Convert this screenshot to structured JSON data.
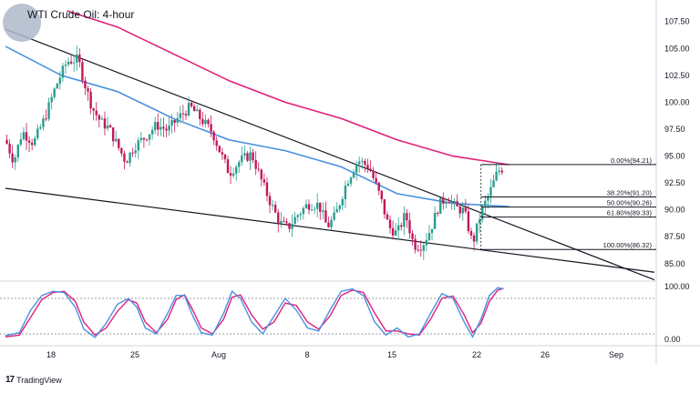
{
  "title": "WTI Crude Oil: 4-hour",
  "brand": "TradingView",
  "colors": {
    "up": "#2a9d8f",
    "down": "#c2185b",
    "ma_fast": "#4a90e2",
    "ma_slow": "#e0207a",
    "stoch_k": "#4a90e2",
    "stoch_d": "#e0207a",
    "trendline": "#131722"
  },
  "chart_data": {
    "type": "candlestick",
    "title": "WTI Crude Oil: 4-hour",
    "price_axis": {
      "ticks": [
        "107.50",
        "105.00",
        "102.50",
        "100.00",
        "97.50",
        "95.00",
        "92.50",
        "90.00",
        "87.50",
        "85.00"
      ],
      "range": [
        83.8,
        109.0
      ]
    },
    "x_ticks": [
      "18",
      "25",
      "Aug",
      "8",
      "15",
      "22",
      "26",
      "Sep"
    ],
    "candles_4h_close_approx": [
      {
        "t": 0,
        "c": 96.5
      },
      {
        "t": 3,
        "c": 94.5
      },
      {
        "t": 6,
        "c": 97.3
      },
      {
        "t": 10,
        "c": 96.2
      },
      {
        "t": 14,
        "c": 98.5
      },
      {
        "t": 18,
        "c": 101.5
      },
      {
        "t": 22,
        "c": 103.8
      },
      {
        "t": 26,
        "c": 104.0
      },
      {
        "t": 28,
        "c": 102.0
      },
      {
        "t": 31,
        "c": 99.5
      },
      {
        "t": 34,
        "c": 98.2
      },
      {
        "t": 37,
        "c": 97.6
      },
      {
        "t": 40,
        "c": 96.0
      },
      {
        "t": 43,
        "c": 94.5
      },
      {
        "t": 46,
        "c": 95.9
      },
      {
        "t": 50,
        "c": 96.8
      },
      {
        "t": 54,
        "c": 97.9
      },
      {
        "t": 58,
        "c": 97.4
      },
      {
        "t": 62,
        "c": 98.6
      },
      {
        "t": 66,
        "c": 99.6
      },
      {
        "t": 70,
        "c": 98.4
      },
      {
        "t": 74,
        "c": 97.2
      },
      {
        "t": 77,
        "c": 95.2
      },
      {
        "t": 80,
        "c": 93.4
      },
      {
        "t": 84,
        "c": 94.6
      },
      {
        "t": 88,
        "c": 95.2
      },
      {
        "t": 92,
        "c": 92.4
      },
      {
        "t": 95,
        "c": 90.5
      },
      {
        "t": 98,
        "c": 88.8
      },
      {
        "t": 101,
        "c": 88.3
      },
      {
        "t": 104,
        "c": 89.4
      },
      {
        "t": 108,
        "c": 90.5
      },
      {
        "t": 112,
        "c": 90.5
      },
      {
        "t": 115,
        "c": 88.4
      },
      {
        "t": 118,
        "c": 89.5
      },
      {
        "t": 122,
        "c": 92.6
      },
      {
        "t": 126,
        "c": 94.6
      },
      {
        "t": 130,
        "c": 94.0
      },
      {
        "t": 134,
        "c": 91.2
      },
      {
        "t": 137,
        "c": 88.4
      },
      {
        "t": 140,
        "c": 87.8
      },
      {
        "t": 143,
        "c": 89.6
      },
      {
        "t": 146,
        "c": 86.7
      },
      {
        "t": 149,
        "c": 86.7
      },
      {
        "t": 152,
        "c": 88.2
      },
      {
        "t": 155,
        "c": 90.5
      },
      {
        "t": 158,
        "c": 91.2
      },
      {
        "t": 161,
        "c": 90.2
      },
      {
        "t": 164,
        "c": 89.9
      },
      {
        "t": 167,
        "c": 86.8
      },
      {
        "t": 170,
        "c": 89.8
      },
      {
        "t": 173,
        "c": 91.5
      },
      {
        "t": 176,
        "c": 93.6
      },
      {
        "t": 178,
        "c": 93.9
      }
    ],
    "moving_averages": [
      {
        "name": "ma_fast",
        "points": [
          [
            0,
            105.2
          ],
          [
            20,
            102.5
          ],
          [
            40,
            101.0
          ],
          [
            60,
            98.5
          ],
          [
            80,
            96.5
          ],
          [
            100,
            95.5
          ],
          [
            120,
            94.0
          ],
          [
            140,
            91.5
          ],
          [
            160,
            90.6
          ],
          [
            180,
            90.3
          ]
        ]
      },
      {
        "name": "ma_slow",
        "points": [
          [
            22,
            108.5
          ],
          [
            40,
            107.0
          ],
          [
            60,
            104.5
          ],
          [
            80,
            102.0
          ],
          [
            100,
            100.0
          ],
          [
            120,
            98.5
          ],
          [
            140,
            96.5
          ],
          [
            160,
            95.0
          ],
          [
            180,
            94.2
          ]
        ]
      }
    ],
    "trendlines": [
      {
        "from": [
          0,
          106.8
        ],
        "to": [
          232,
          83.5
        ]
      },
      {
        "from": [
          0,
          92.0
        ],
        "to": [
          232,
          84.2
        ]
      }
    ],
    "fibonacci": {
      "levels": [
        {
          "label": "0.00%(94.21)",
          "price": 94.21
        },
        {
          "label": "38.20%(91.20)",
          "price": 91.2
        },
        {
          "label": "50.00%(90.26)",
          "price": 90.26
        },
        {
          "label": "61.80%(89.33)",
          "price": 89.33
        },
        {
          "label": "100.00%(86.32)",
          "price": 86.32
        }
      ]
    },
    "stochastic": {
      "axis_ticks": [
        "100.00",
        "0.00"
      ],
      "overbought": 80,
      "oversold": 20,
      "k": [
        [
          0,
          17
        ],
        [
          5,
          22
        ],
        [
          9,
          60
        ],
        [
          13,
          85
        ],
        [
          17,
          92
        ],
        [
          21,
          90
        ],
        [
          25,
          65
        ],
        [
          28,
          28
        ],
        [
          32,
          14
        ],
        [
          36,
          38
        ],
        [
          40,
          70
        ],
        [
          44,
          80
        ],
        [
          47,
          65
        ],
        [
          50,
          30
        ],
        [
          54,
          20
        ],
        [
          58,
          55
        ],
        [
          61,
          85
        ],
        [
          64,
          85
        ],
        [
          67,
          50
        ],
        [
          70,
          22
        ],
        [
          74,
          18
        ],
        [
          78,
          55
        ],
        [
          81,
          92
        ],
        [
          84,
          80
        ],
        [
          88,
          40
        ],
        [
          92,
          20
        ],
        [
          96,
          50
        ],
        [
          100,
          80
        ],
        [
          104,
          60
        ],
        [
          108,
          30
        ],
        [
          112,
          25
        ],
        [
          116,
          60
        ],
        [
          120,
          92
        ],
        [
          124,
          96
        ],
        [
          128,
          85
        ],
        [
          132,
          40
        ],
        [
          136,
          18
        ],
        [
          140,
          30
        ],
        [
          144,
          15
        ],
        [
          148,
          20
        ],
        [
          152,
          55
        ],
        [
          156,
          88
        ],
        [
          160,
          80
        ],
        [
          164,
          40
        ],
        [
          167,
          15
        ],
        [
          170,
          45
        ],
        [
          173,
          85
        ],
        [
          176,
          98
        ],
        [
          178,
          96
        ]
      ],
      "d": [
        [
          0,
          15
        ],
        [
          5,
          18
        ],
        [
          9,
          48
        ],
        [
          13,
          78
        ],
        [
          17,
          90
        ],
        [
          21,
          92
        ],
        [
          25,
          75
        ],
        [
          28,
          40
        ],
        [
          32,
          18
        ],
        [
          36,
          30
        ],
        [
          40,
          58
        ],
        [
          44,
          78
        ],
        [
          47,
          72
        ],
        [
          50,
          40
        ],
        [
          54,
          22
        ],
        [
          58,
          45
        ],
        [
          61,
          78
        ],
        [
          64,
          86
        ],
        [
          67,
          60
        ],
        [
          70,
          30
        ],
        [
          74,
          20
        ],
        [
          78,
          45
        ],
        [
          81,
          82
        ],
        [
          84,
          86
        ],
        [
          88,
          52
        ],
        [
          92,
          28
        ],
        [
          96,
          40
        ],
        [
          100,
          72
        ],
        [
          104,
          68
        ],
        [
          108,
          40
        ],
        [
          112,
          28
        ],
        [
          116,
          50
        ],
        [
          120,
          85
        ],
        [
          124,
          94
        ],
        [
          128,
          90
        ],
        [
          132,
          55
        ],
        [
          136,
          25
        ],
        [
          140,
          25
        ],
        [
          144,
          20
        ],
        [
          148,
          18
        ],
        [
          152,
          45
        ],
        [
          156,
          80
        ],
        [
          160,
          84
        ],
        [
          164,
          52
        ],
        [
          167,
          22
        ],
        [
          170,
          38
        ],
        [
          173,
          75
        ],
        [
          176,
          94
        ],
        [
          178,
          97
        ]
      ]
    }
  }
}
